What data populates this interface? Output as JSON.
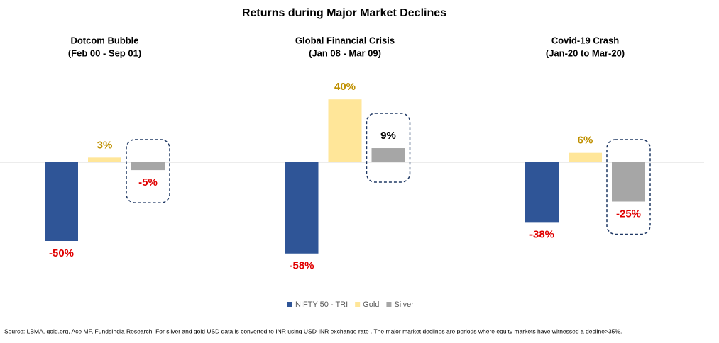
{
  "chart_data": {
    "type": "bar",
    "title": "Returns during Major Market Declines",
    "categories": [
      "Dotcom Bubble",
      "Global Financial Crisis",
      "Covid-19 Crash"
    ],
    "category_periods": [
      "(Feb 00 - Sep 01)",
      "(Jan 08 - Mar 09)",
      "(Jan-20 to Mar-20)"
    ],
    "series": [
      {
        "name": "NIFTY 50 - TRI",
        "color": "#2f5597",
        "values": [
          -50,
          -58,
          -38
        ],
        "value_labels": [
          "-50%",
          "-58%",
          "-38%"
        ]
      },
      {
        "name": "Gold",
        "color": "#ffe699",
        "label_color": "#bf9000",
        "values": [
          3,
          40,
          6
        ],
        "value_labels": [
          "3%",
          "40%",
          "6%"
        ]
      },
      {
        "name": "Silver",
        "color": "#a6a6a6",
        "label_color": "#000000",
        "highlight": true,
        "values": [
          -5,
          9,
          -25
        ],
        "value_labels": [
          "-5%",
          "9%",
          "-25%"
        ]
      }
    ],
    "negative_label_color": "#e00000",
    "legend": "bottom",
    "source": "Source: LBMA, gold.org, Ace MF, FundsIndia Research. For silver and gold USD data is converted to INR using USD-INR exchange rate . The major market declines are periods where equity markets have witnessed a decline>35%."
  }
}
